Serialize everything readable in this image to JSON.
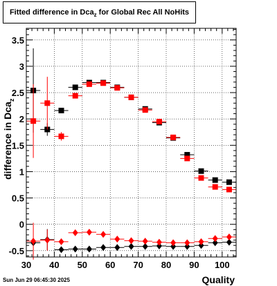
{
  "title": {
    "main": "Fitted difference in Dca",
    "sub": "z",
    "tail": "  for Global Rec All NoHits"
  },
  "datestamp": "Sun Jun 29 06:45:30 2025",
  "chart_data": {
    "type": "scatter",
    "xlabel": "Quality",
    "ylabel": {
      "main": "difference in Dca",
      "sub": "z"
    },
    "xlim": [
      30,
      105
    ],
    "ylim": [
      -0.62,
      3.72
    ],
    "xticks": [
      "30",
      "40",
      "50",
      "60",
      "70",
      "80",
      "90",
      "100"
    ],
    "yticks": [
      "-0.5",
      "0",
      "0.5",
      "1",
      "1.5",
      "2",
      "2.5",
      "3",
      "3.5"
    ],
    "grid": true,
    "x": [
      32.5,
      37.5,
      42.5,
      47.5,
      52.5,
      57.5,
      62.5,
      67.5,
      72.5,
      77.5,
      82.5,
      87.5,
      92.5,
      97.5,
      102.5
    ],
    "series": [
      {
        "marker": "square",
        "color": "#000000",
        "values": [
          2.54,
          1.8,
          2.16,
          2.6,
          2.69,
          2.69,
          2.6,
          2.41,
          2.19,
          1.93,
          1.64,
          1.32,
          1.01,
          0.84,
          0.8
        ],
        "errors": [
          0.8,
          0.12,
          0.05,
          0.03,
          0.02,
          0.02,
          0.02,
          0.02,
          0.02,
          0.02,
          0.02,
          0.02,
          0.02,
          0.02,
          0.02
        ]
      },
      {
        "marker": "square",
        "color": "#ff0000",
        "values": [
          1.96,
          2.3,
          1.67,
          2.44,
          2.66,
          2.68,
          2.59,
          2.41,
          2.17,
          1.95,
          1.65,
          1.25,
          0.88,
          0.71,
          0.66
        ],
        "errors": [
          0.7,
          0.5,
          0.08,
          0.04,
          0.03,
          0.02,
          0.02,
          0.02,
          0.02,
          0.02,
          0.02,
          0.02,
          0.02,
          0.02,
          0.02
        ]
      },
      {
        "marker": "diamond",
        "color": "#000000",
        "values": [
          -0.35,
          -0.29,
          -0.48,
          -0.47,
          -0.47,
          -0.44,
          -0.44,
          -0.42,
          -0.42,
          -0.41,
          -0.42,
          -0.42,
          -0.4,
          -0.35,
          -0.34
        ],
        "errors": [
          0.0,
          0.2,
          0.02,
          0.01,
          0.01,
          0.01,
          0.01,
          0.01,
          0.01,
          0.01,
          0.01,
          0.01,
          0.01,
          0.01,
          0.01
        ]
      },
      {
        "marker": "diamond",
        "color": "#ff0000",
        "values": [
          -0.32,
          -0.3,
          -0.33,
          -0.16,
          -0.15,
          -0.19,
          -0.28,
          -0.31,
          -0.32,
          -0.34,
          -0.35,
          -0.35,
          -0.33,
          -0.27,
          -0.24
        ],
        "errors": [
          0.35,
          0.2,
          0.02,
          0.01,
          0.01,
          0.01,
          0.01,
          0.01,
          0.01,
          0.01,
          0.01,
          0.01,
          0.01,
          0.01,
          0.01
        ]
      }
    ]
  }
}
